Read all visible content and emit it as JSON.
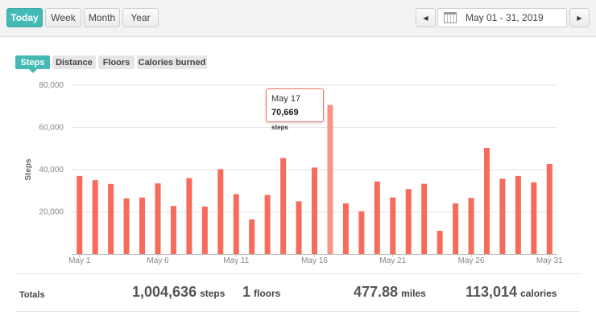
{
  "range_buttons": [
    {
      "label": "Today",
      "active": true
    },
    {
      "label": "Week",
      "active": false
    },
    {
      "label": "Month",
      "active": false
    },
    {
      "label": "Year",
      "active": false
    }
  ],
  "date_range": "May 01 - 31, 2019",
  "metric_tabs": [
    {
      "label": "Steps",
      "active": true
    },
    {
      "label": "Distance",
      "active": false
    },
    {
      "label": "Floors",
      "active": false
    },
    {
      "label": "Calories burned",
      "active": false
    }
  ],
  "tooltip": {
    "date": "May 17",
    "value": "70,669",
    "unit": "steps"
  },
  "totals": {
    "label": "Totals",
    "steps": {
      "value": "1,004,636",
      "unit": "steps"
    },
    "floors": {
      "value": "1",
      "unit": "floors"
    },
    "miles": {
      "value": "477.88",
      "unit": "miles"
    },
    "calories": {
      "value": "113,014",
      "unit": "calories"
    }
  },
  "colors": {
    "accent": "#45b9b6",
    "bar": "#f76b5d",
    "bar_highlight": "#fa9585"
  },
  "chart_data": {
    "type": "bar",
    "ylabel": "Steps",
    "ylim": [
      0,
      80000
    ],
    "yticks": [
      20000,
      40000,
      60000,
      80000
    ],
    "ytick_labels": [
      "20,000",
      "40,000",
      "60,000",
      "80,000"
    ],
    "x_tick_labels": [
      {
        "day": 1,
        "label": "May 1"
      },
      {
        "day": 6,
        "label": "May 6"
      },
      {
        "day": 11,
        "label": "May 11"
      },
      {
        "day": 16,
        "label": "May 16"
      },
      {
        "day": 21,
        "label": "May 21"
      },
      {
        "day": 26,
        "label": "May 26"
      },
      {
        "day": 31,
        "label": "May 31"
      }
    ],
    "highlight_day": 17,
    "days": [
      1,
      2,
      3,
      4,
      5,
      6,
      7,
      8,
      9,
      10,
      11,
      12,
      13,
      14,
      15,
      16,
      17,
      18,
      19,
      20,
      21,
      22,
      23,
      24,
      25,
      26,
      27,
      28,
      29,
      30,
      31
    ],
    "values": [
      37000,
      35000,
      33200,
      26400,
      26800,
      33500,
      22800,
      36000,
      22500,
      40200,
      28400,
      16400,
      28000,
      45500,
      25000,
      41000,
      70669,
      24000,
      20300,
      34400,
      26800,
      30800,
      33300,
      11000,
      24000,
      26600,
      50300,
      35700,
      37000,
      34000,
      42700
    ]
  }
}
